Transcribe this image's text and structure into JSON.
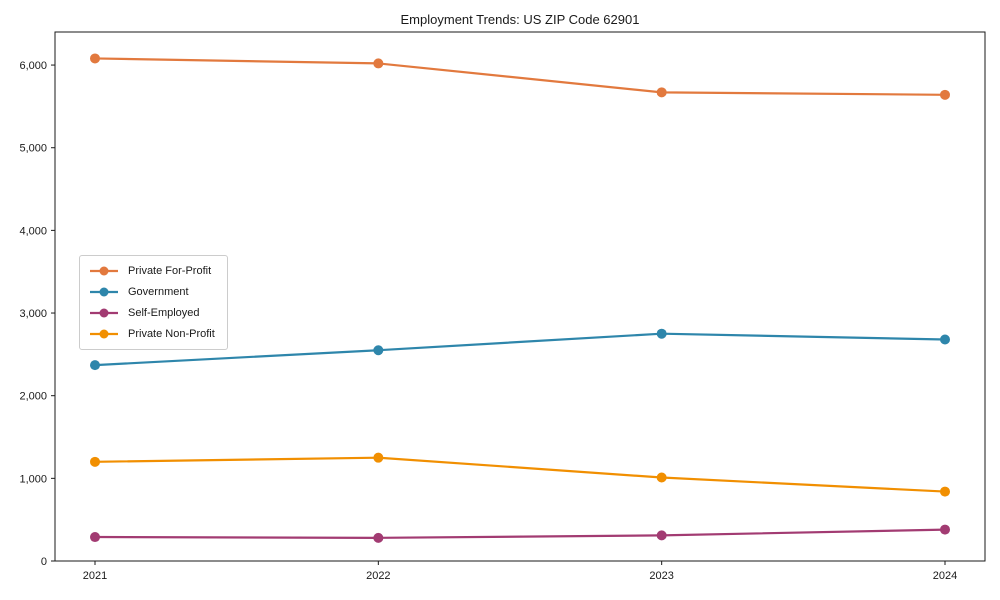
{
  "chart_data": {
    "type": "line",
    "title": "Employment Trends: US ZIP Code 62901",
    "xlabel": "",
    "ylabel": "",
    "categories": [
      "2021",
      "2022",
      "2023",
      "2024"
    ],
    "series": [
      {
        "name": "Private For-Profit",
        "color": "#E2793E",
        "values": [
          6080,
          6020,
          5670,
          5640
        ]
      },
      {
        "name": "Government",
        "color": "#2E86AB",
        "values": [
          2370,
          2550,
          2750,
          2680
        ]
      },
      {
        "name": "Self-Employed",
        "color": "#A23B72",
        "values": [
          290,
          280,
          310,
          380
        ]
      },
      {
        "name": "Private Non-Profit",
        "color": "#F18F01",
        "values": [
          1200,
          1250,
          1010,
          840
        ]
      }
    ],
    "ylim": [
      0,
      6400
    ],
    "yticks": [
      0,
      1000,
      2000,
      3000,
      4000,
      5000,
      6000
    ],
    "grid": false,
    "marker": "circle",
    "legend_position": "center-left",
    "axis_color": "#1a1a1a"
  }
}
